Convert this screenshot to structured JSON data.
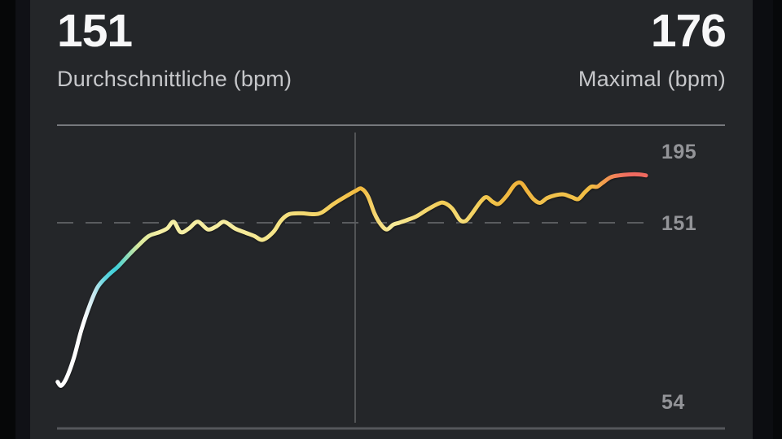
{
  "header": {
    "avg_value": "151",
    "avg_label": "Durchschnittliche (bpm)",
    "max_value": "176",
    "max_label": "Maximal (bpm)"
  },
  "colors": {
    "background": "#242629",
    "edge_strips": "#0a0b0e",
    "stat_value_text": "#f7f7f8",
    "stat_label_text": "#c6c7ca",
    "tick_label_text": "#939498",
    "frame_line_top": "#76787c",
    "frame_line_bottom": "#55575b",
    "center_gridline": "#606264",
    "reference_dash": "#5a5c5f",
    "zone_rest_white": "#ffffff",
    "zone_light_cyan": "#3ecfd8",
    "zone_moderate_yellow": "#f5efa5",
    "zone_hard_amber": "#efb039",
    "zone_max_red": "#ef695f"
  },
  "chart_data": {
    "type": "line",
    "unit": "bpm",
    "avg_bpm": 151,
    "max_bpm": 176,
    "y_tick_labels": [
      "195",
      "151",
      "54"
    ],
    "y_tick_values": [
      195,
      151,
      54
    ],
    "reference_line_bpm": 151,
    "grid": "single vertical midline, dashed horizontal reference at avg",
    "legend": "none",
    "series": [
      {
        "name": "heart-rate",
        "points": [
          [
            0.001,
            67
          ],
          [
            0.007,
            65
          ],
          [
            0.016,
            69
          ],
          [
            0.028,
            79
          ],
          [
            0.041,
            94
          ],
          [
            0.055,
            107
          ],
          [
            0.069,
            117
          ],
          [
            0.086,
            123
          ],
          [
            0.104,
            128
          ],
          [
            0.122,
            134
          ],
          [
            0.138,
            139
          ],
          [
            0.156,
            144
          ],
          [
            0.174,
            146
          ],
          [
            0.187,
            148
          ],
          [
            0.198,
            151.5
          ],
          [
            0.21,
            146
          ],
          [
            0.224,
            148
          ],
          [
            0.239,
            151.5
          ],
          [
            0.256,
            147.5
          ],
          [
            0.27,
            149
          ],
          [
            0.284,
            151.5
          ],
          [
            0.302,
            148
          ],
          [
            0.318,
            146
          ],
          [
            0.335,
            144
          ],
          [
            0.349,
            142
          ],
          [
            0.367,
            146
          ],
          [
            0.38,
            152
          ],
          [
            0.394,
            155.5
          ],
          [
            0.415,
            156
          ],
          [
            0.436,
            155.5
          ],
          [
            0.45,
            156.5
          ],
          [
            0.47,
            161
          ],
          [
            0.491,
            165
          ],
          [
            0.508,
            168
          ],
          [
            0.517,
            169
          ],
          [
            0.528,
            165
          ],
          [
            0.539,
            156
          ],
          [
            0.55,
            150
          ],
          [
            0.56,
            147.5
          ],
          [
            0.571,
            150
          ],
          [
            0.581,
            151
          ],
          [
            0.595,
            152.5
          ],
          [
            0.611,
            154.5
          ],
          [
            0.629,
            158
          ],
          [
            0.647,
            161
          ],
          [
            0.657,
            161.5
          ],
          [
            0.671,
            158.5
          ],
          [
            0.684,
            152.5
          ],
          [
            0.694,
            152
          ],
          [
            0.705,
            156
          ],
          [
            0.719,
            162
          ],
          [
            0.729,
            164.5
          ],
          [
            0.74,
            162
          ],
          [
            0.75,
            161
          ],
          [
            0.763,
            165
          ],
          [
            0.777,
            171
          ],
          [
            0.788,
            172
          ],
          [
            0.799,
            167.5
          ],
          [
            0.809,
            163.5
          ],
          [
            0.82,
            161.5
          ],
          [
            0.832,
            164
          ],
          [
            0.846,
            165.5
          ],
          [
            0.86,
            166
          ],
          [
            0.874,
            164.5
          ],
          [
            0.885,
            163.5
          ],
          [
            0.896,
            167
          ],
          [
            0.907,
            170
          ],
          [
            0.917,
            170
          ],
          [
            0.926,
            172
          ],
          [
            0.94,
            175
          ],
          [
            0.954,
            176
          ],
          [
            0.971,
            176.5
          ],
          [
            0.989,
            176.5
          ],
          [
            1.0,
            176
          ]
        ]
      }
    ],
    "line_gradient_stops": [
      [
        0.0,
        "#ffffff"
      ],
      [
        0.045,
        "#fefefe"
      ],
      [
        0.062,
        "#cbe8ef"
      ],
      [
        0.082,
        "#5ed4de"
      ],
      [
        0.1,
        "#3ecfd8"
      ],
      [
        0.138,
        "#d9e99d"
      ],
      [
        0.175,
        "#f5efa5"
      ],
      [
        0.3,
        "#f6ec9e"
      ],
      [
        0.36,
        "#f5e68c"
      ],
      [
        0.456,
        "#f4d161"
      ],
      [
        0.516,
        "#f2b93d"
      ],
      [
        0.542,
        "#f4d775"
      ],
      [
        0.567,
        "#f6eb9b"
      ],
      [
        0.602,
        "#f5df80"
      ],
      [
        0.657,
        "#f2cb54"
      ],
      [
        0.685,
        "#f4dc78"
      ],
      [
        0.733,
        "#f1c44a"
      ],
      [
        0.791,
        "#efb039"
      ],
      [
        0.823,
        "#f1c14d"
      ],
      [
        0.871,
        "#f1c149"
      ],
      [
        0.907,
        "#f2bc43"
      ],
      [
        0.929,
        "#f39d4e"
      ],
      [
        0.952,
        "#f17b5b"
      ],
      [
        0.971,
        "#f06b60"
      ],
      [
        1.0,
        "#ef695f"
      ]
    ]
  }
}
